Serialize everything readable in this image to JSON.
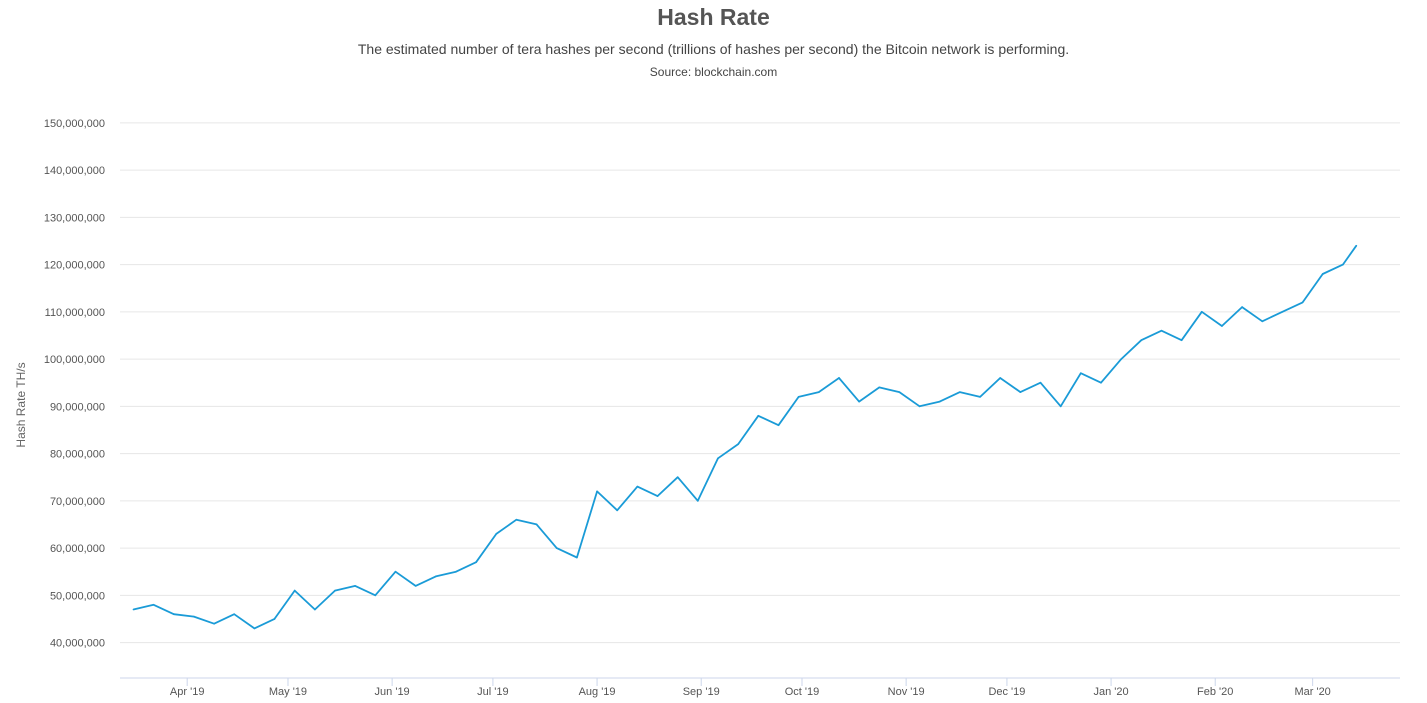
{
  "chart_data": {
    "type": "line",
    "title": "Hash Rate",
    "subtitle": "The estimated number of tera hashes per second (trillions of hashes per second) the Bitcoin network is performing.",
    "source": "Source: blockchain.com",
    "xlabel": "",
    "ylabel": "Hash Rate TH/s",
    "ylim": [
      32500000,
      152500000
    ],
    "xlim": [
      "2019-03-12",
      "2020-03-27"
    ],
    "grid": true,
    "line_color": "#1a9bd7",
    "y_ticks": [
      "40,000,000",
      "50,000,000",
      "60,000,000",
      "70,000,000",
      "80,000,000",
      "90,000,000",
      "100,000,000",
      "110,000,000",
      "120,000,000",
      "130,000,000",
      "140,000,000",
      "150,000,000"
    ],
    "y_tick_values": [
      40000000,
      50000000,
      60000000,
      70000000,
      80000000,
      90000000,
      100000000,
      110000000,
      120000000,
      130000000,
      140000000,
      150000000
    ],
    "x_ticks": [
      "Apr '19",
      "May '19",
      "Jun '19",
      "Jul '19",
      "Aug '19",
      "Sep '19",
      "Oct '19",
      "Nov '19",
      "Dec '19",
      "Jan '20",
      "Feb '20",
      "Mar '20"
    ],
    "x_tick_dates": [
      "2019-04-01",
      "2019-05-01",
      "2019-06-01",
      "2019-07-01",
      "2019-08-01",
      "2019-09-01",
      "2019-10-01",
      "2019-11-01",
      "2019-12-01",
      "2020-01-01",
      "2020-02-01",
      "2020-03-01"
    ],
    "series": [
      {
        "x": [
          "2019-03-16",
          "2019-03-22",
          "2019-03-28",
          "2019-04-03",
          "2019-04-09",
          "2019-04-15",
          "2019-04-21",
          "2019-04-27",
          "2019-05-03",
          "2019-05-09",
          "2019-05-15",
          "2019-05-21",
          "2019-05-27",
          "2019-06-02",
          "2019-06-08",
          "2019-06-14",
          "2019-06-20",
          "2019-06-26",
          "2019-07-02",
          "2019-07-08",
          "2019-07-14",
          "2019-07-20",
          "2019-07-26",
          "2019-08-01",
          "2019-08-07",
          "2019-08-13",
          "2019-08-19",
          "2019-08-25",
          "2019-08-31",
          "2019-09-06",
          "2019-09-12",
          "2019-09-18",
          "2019-09-24",
          "2019-09-30",
          "2019-10-06",
          "2019-10-12",
          "2019-10-18",
          "2019-10-24",
          "2019-10-30",
          "2019-11-05",
          "2019-11-11",
          "2019-11-17",
          "2019-11-23",
          "2019-11-29",
          "2019-12-05",
          "2019-12-11",
          "2019-12-17",
          "2019-12-23",
          "2019-12-29",
          "2020-01-04",
          "2020-01-10",
          "2020-01-16",
          "2020-01-22",
          "2020-01-28",
          "2020-02-03",
          "2020-02-09",
          "2020-02-15",
          "2020-02-21",
          "2020-02-27",
          "2020-03-04",
          "2020-03-10",
          "2020-03-14"
        ],
        "values": [
          47000000,
          48000000,
          46000000,
          45500000,
          44000000,
          46000000,
          43000000,
          45000000,
          51000000,
          47000000,
          51000000,
          52000000,
          50000000,
          55000000,
          52000000,
          54000000,
          55000000,
          57000000,
          63000000,
          66000000,
          65000000,
          60000000,
          58000000,
          72000000,
          68000000,
          73000000,
          71000000,
          75000000,
          70000000,
          79000000,
          82000000,
          88000000,
          86000000,
          92000000,
          93000000,
          96000000,
          91000000,
          94000000,
          93000000,
          90000000,
          91000000,
          93000000,
          92000000,
          96000000,
          93000000,
          95000000,
          90000000,
          97000000,
          95000000,
          100000000,
          104000000,
          106000000,
          104000000,
          110000000,
          107000000,
          111000000,
          108000000,
          110000000,
          112000000,
          118000000,
          120000000,
          124000000
        ]
      }
    ]
  }
}
